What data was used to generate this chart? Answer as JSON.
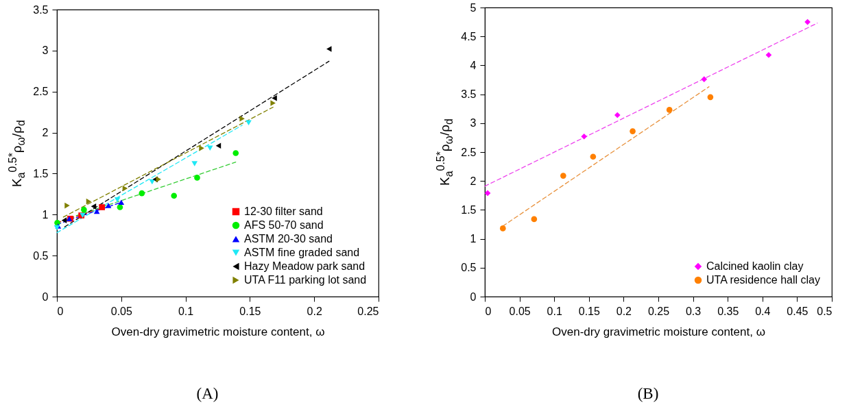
{
  "chart_data": [
    {
      "type": "scatter",
      "xlabel": "Oven-dry gravimetric moisture content, ω",
      "ylabel": "K$_{a}$$^{0.5*}$ρ$_{ω}$/ρ$_{d}$",
      "annotations": [
        "(A)"
      ],
      "xlim": [
        0,
        0.25
      ],
      "xticks": [
        0,
        0.05,
        0.1,
        0.15,
        0.2,
        0.25
      ],
      "ylim": [
        0,
        3.5
      ],
      "yticks": [
        0,
        0.5,
        1,
        1.5,
        2,
        2.5,
        3,
        3.5
      ],
      "grid": false,
      "legend": "bottom right",
      "series": [
        {
          "type": "line",
          "color": "#ff0000",
          "line_style": "dashed",
          "x": [
            0,
            0.035
          ],
          "values": [
            0.9,
            1.08
          ]
        },
        {
          "type": "line",
          "color": "#33cc33",
          "line_style": "dashed",
          "x": [
            0.01,
            0.139
          ],
          "values": [
            0.96,
            1.64
          ]
        },
        {
          "type": "line",
          "color": "#0000ff",
          "line_style": "dashed",
          "x": [
            0,
            0.05
          ],
          "values": [
            0.88,
            1.15
          ]
        },
        {
          "type": "line",
          "color": "#1ee8f5",
          "line_style": "dashed",
          "x": [
            0,
            0.144
          ],
          "values": [
            0.78,
            2.09
          ]
        },
        {
          "type": "line",
          "color": "#000000",
          "line_style": "dashed",
          "x": [
            0.006,
            0.2115
          ],
          "values": [
            0.85,
            2.87
          ]
        },
        {
          "type": "line",
          "color": "#808000",
          "line_style": "dashed",
          "x": [
            0.005,
            0.168
          ],
          "values": [
            0.97,
            2.31
          ]
        },
        {
          "name": "12-30 filter sand",
          "color": "#ff0000",
          "marker": "square",
          "x": [
            0.0104,
            0.019,
            0.035
          ],
          "values": [
            0.95,
            0.99,
            1.09
          ]
        },
        {
          "name": "AFS 50-70 sand",
          "color": "#00ee00",
          "marker": "circle",
          "x": [
            0.0003,
            0.021,
            0.049,
            0.066,
            0.091,
            0.109,
            0.139
          ],
          "values": [
            0.9,
            1.06,
            1.09,
            1.26,
            1.23,
            1.45,
            1.75
          ]
        },
        {
          "name": "ASTM 20-30 sand",
          "color": "#0000ff",
          "marker": "triangle",
          "x": [
            0.001,
            0.0096,
            0.031,
            0.04,
            0.05
          ],
          "values": [
            0.86,
            0.95,
            1.04,
            1.11,
            1.15
          ]
        },
        {
          "name": "ASTM fine graded sand",
          "color": "#1ee8f5",
          "marker": "triangle-down",
          "x": [
            0,
            0.02,
            0.047,
            0.074,
            0.107,
            0.119,
            0.149
          ],
          "values": [
            0.84,
            0.99,
            1.18,
            1.4,
            1.62,
            1.81,
            2.12
          ]
        },
        {
          "name": "Hazy Meadow park sand",
          "color": "#000000",
          "marker": "triangle-left",
          "x": [
            0.0056,
            0.0285,
            0.0764,
            0.1255,
            0.169,
            0.2115
          ],
          "values": [
            0.93,
            1.1,
            1.43,
            1.84,
            2.42,
            3.02
          ]
        },
        {
          "name": "UTA F11 parking lot sand",
          "color": "#808000",
          "marker": "triangle-right",
          "x": [
            0.008,
            0.0248,
            0.053,
            0.079,
            0.1125,
            0.144,
            0.168
          ],
          "values": [
            1.11,
            1.16,
            1.32,
            1.43,
            1.81,
            2.17,
            2.36
          ]
        }
      ]
    },
    {
      "type": "scatter",
      "xlabel": "Oven-dry gravimetric moisture content, ω",
      "ylabel": "K$_{a}$$^{0.5*}$ρ$_{ω}$/ρ$_{d}$",
      "annotations": [
        "(B)"
      ],
      "xlim": [
        0,
        0.5
      ],
      "xticks": [
        0,
        0.05,
        0.1,
        0.15,
        0.2,
        0.25,
        0.3,
        0.35,
        0.4,
        0.45,
        0.5
      ],
      "ylim": [
        0,
        5
      ],
      "yticks": [
        0,
        0.5,
        1,
        1.5,
        2,
        2.5,
        3,
        3.5,
        4,
        4.5,
        5
      ],
      "grid": false,
      "legend": "bottom right",
      "series": [
        {
          "type": "line",
          "color": "#ee44ee",
          "line_style": "dashed",
          "x": [
            0,
            0.479
          ],
          "values": [
            1.91,
            4.73
          ]
        },
        {
          "type": "line",
          "color": "#e8903a",
          "line_style": "dashed",
          "x": [
            0.026,
            0.323
          ],
          "values": [
            1.22,
            3.63
          ]
        },
        {
          "name": "Calcined kaolin clay",
          "color": "#ff00ff",
          "marker": "diamond",
          "x": [
            0.004,
            0.143,
            0.191,
            0.316,
            0.409,
            0.465
          ],
          "values": [
            1.79,
            2.77,
            3.14,
            3.76,
            4.18,
            4.75
          ]
        },
        {
          "name": "UTA residence hall clay",
          "color": "#ff8000",
          "marker": "circle",
          "x": [
            0.026,
            0.071,
            0.113,
            0.156,
            0.213,
            0.266,
            0.325
          ],
          "values": [
            1.18,
            1.34,
            2.09,
            2.42,
            2.86,
            3.23,
            3.45
          ]
        }
      ]
    }
  ]
}
